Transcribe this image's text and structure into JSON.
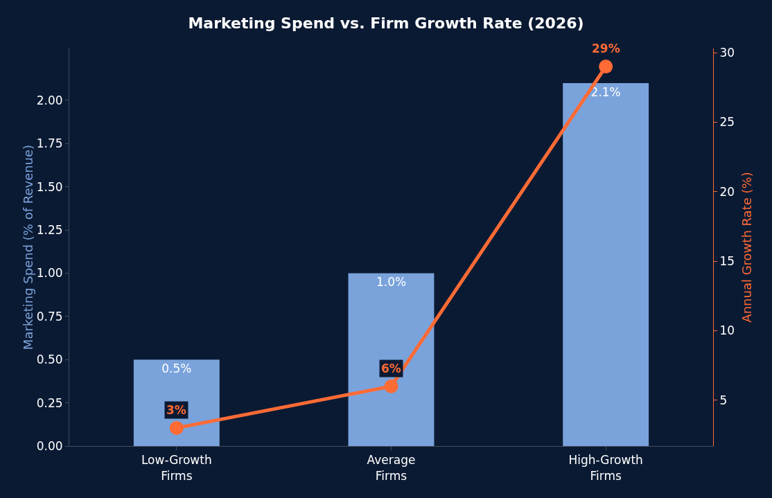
{
  "chart_data": {
    "type": "bar",
    "title": "Marketing Spend vs. Firm Growth Rate (2026)",
    "ylabel": "Marketing Spend (% of Revenue)",
    "y2label": "Annual Growth Rate (%)",
    "categories": [
      "Low-Growth\nFirms",
      "Average\nFirms",
      "High-Growth\nFirms"
    ],
    "series": [
      {
        "color": "#7aa3dc",
        "values": [
          0.5,
          1.0,
          2.1
        ],
        "value_labels": [
          "0.5%",
          "1.0%",
          "2.1%"
        ]
      },
      {
        "type": "line",
        "axis": "y2",
        "color": "#ff6b35",
        "values": [
          3,
          6,
          29
        ],
        "value_labels": [
          "3%",
          "6%",
          "29%"
        ]
      }
    ],
    "ylim": [
      0,
      2.3
    ],
    "yticks": [
      {
        "value": 0,
        "label": "0.00"
      },
      {
        "value": 0.25,
        "label": "0.25"
      },
      {
        "value": 0.5,
        "label": "0.50"
      },
      {
        "value": 0.75,
        "label": "0.75"
      },
      {
        "value": 1,
        "label": "1.00"
      },
      {
        "value": 1.25,
        "label": "1.25"
      },
      {
        "value": 1.5,
        "label": "1.50"
      },
      {
        "value": 1.75,
        "label": "1.75"
      },
      {
        "value": 2,
        "label": "2.00"
      }
    ],
    "y2lim": [
      1.7,
      30.3
    ],
    "y2ticks": [
      5,
      10,
      15,
      20,
      25,
      30
    ],
    "grid": false,
    "marker": "circle",
    "line_style": "solid"
  }
}
